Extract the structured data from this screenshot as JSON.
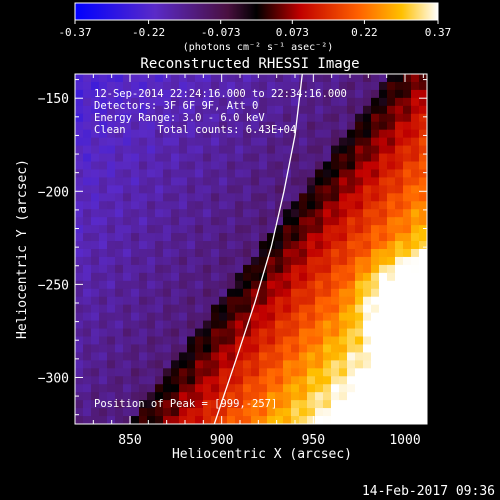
{
  "chart_data": {
    "type": "heatmap",
    "title": "Reconstructed RHESSI Image",
    "xlabel": "Heliocentric X (arcsec)",
    "ylabel": "Heliocentric Y (arcsec)",
    "xlim": [
      820,
      1012
    ],
    "ylim": [
      -325,
      -137
    ],
    "xticks": [
      850,
      900,
      950,
      1000
    ],
    "yticks": [
      -150,
      -200,
      -250,
      -300
    ],
    "colorbar": {
      "min": -0.37,
      "max": 0.37,
      "ticks": [
        "-0.37",
        "-0.22",
        "-0.073",
        "0.073",
        "0.22",
        "0.37"
      ],
      "unit_label": "(photons cm⁻² s⁻¹ asec⁻²)"
    },
    "annotations": [
      "12-Sep-2014 22:24:16.000 to 22:34:16.000",
      "Detectors: 3F 6F 9F, Att 0",
      "Energy Range: 3.0 - 6.0 keV",
      "Clean     Total counts: 6.43E+04"
    ],
    "peak_label": "Position of Peak = [999,-257]",
    "peak": [
      999,
      -257
    ],
    "limb_curve": [
      [
        896,
        -325
      ],
      [
        908,
        -290
      ],
      [
        918,
        -260
      ],
      [
        927,
        -230
      ],
      [
        934,
        -200
      ],
      [
        940,
        -170
      ],
      [
        944,
        -137
      ]
    ],
    "grid": false
  },
  "footer": {
    "timestamp": "14-Feb-2017 09:36"
  }
}
